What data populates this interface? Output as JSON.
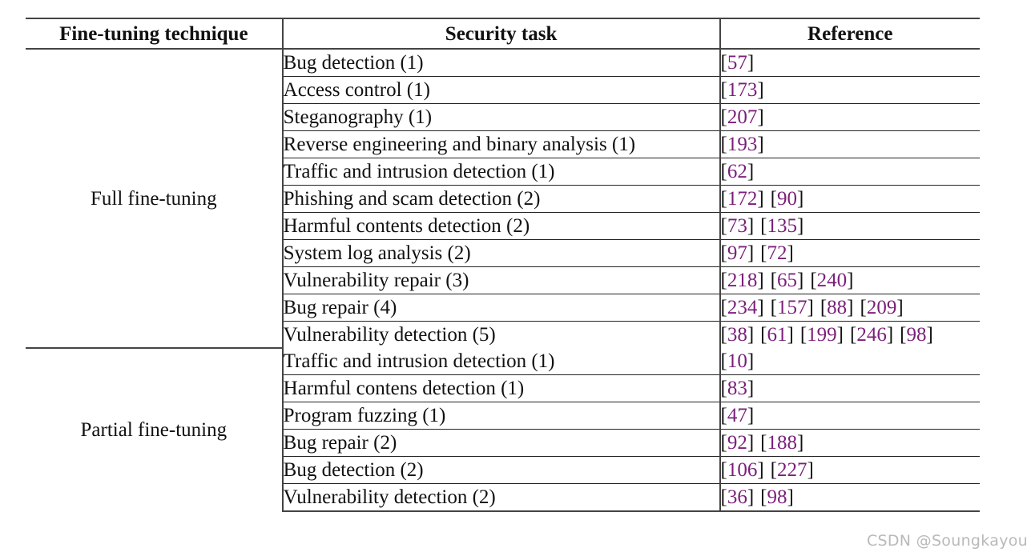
{
  "table": {
    "headers": {
      "technique": "Fine-tuning technique",
      "task": "Security task",
      "reference": "Reference"
    },
    "colors": {
      "citation_number": "#7a1f7a",
      "text": "#111111",
      "rule": "#444444"
    },
    "groups": [
      {
        "technique": "Full fine-tuning",
        "rows": [
          {
            "task": "Bug detection (1)",
            "refs": [
              "57"
            ]
          },
          {
            "task": "Access control (1)",
            "refs": [
              "173"
            ]
          },
          {
            "task": "Steganography (1)",
            "refs": [
              "207"
            ]
          },
          {
            "task": "Reverse engineering and binary analysis (1)",
            "refs": [
              "193"
            ]
          },
          {
            "task": "Traffic and intrusion detection (1)",
            "refs": [
              "62"
            ]
          },
          {
            "task": "Phishing and scam detection (2)",
            "refs": [
              "172",
              "90"
            ]
          },
          {
            "task": "Harmful contents detection (2)",
            "refs": [
              "73",
              "135"
            ]
          },
          {
            "task": "System log analysis (2)",
            "refs": [
              "97",
              "72"
            ]
          },
          {
            "task": "Vulnerability repair (3)",
            "refs": [
              "218",
              "65",
              "240"
            ]
          },
          {
            "task": "Bug repair (4)",
            "refs": [
              "234",
              "157",
              "88",
              "209"
            ]
          },
          {
            "task": "Vulnerability detection (5)",
            "refs": [
              "38",
              "61",
              "199",
              "246",
              "98"
            ]
          }
        ]
      },
      {
        "technique": "Partial fine-tuning",
        "rows": [
          {
            "task": "Traffic and intrusion detection (1)",
            "refs": [
              "10"
            ]
          },
          {
            "task": "Harmful contens detection (1)",
            "refs": [
              "83"
            ]
          },
          {
            "task": "Program fuzzing (1)",
            "refs": [
              "47"
            ]
          },
          {
            "task": "Bug repair (2)",
            "refs": [
              "92",
              "188"
            ]
          },
          {
            "task": "Bug detection (2)",
            "refs": [
              "106",
              "227"
            ]
          },
          {
            "task": "Vulnerability detection (2)",
            "refs": [
              "36",
              "98"
            ]
          }
        ]
      }
    ]
  },
  "watermark": "CSDN @Soungkayou"
}
